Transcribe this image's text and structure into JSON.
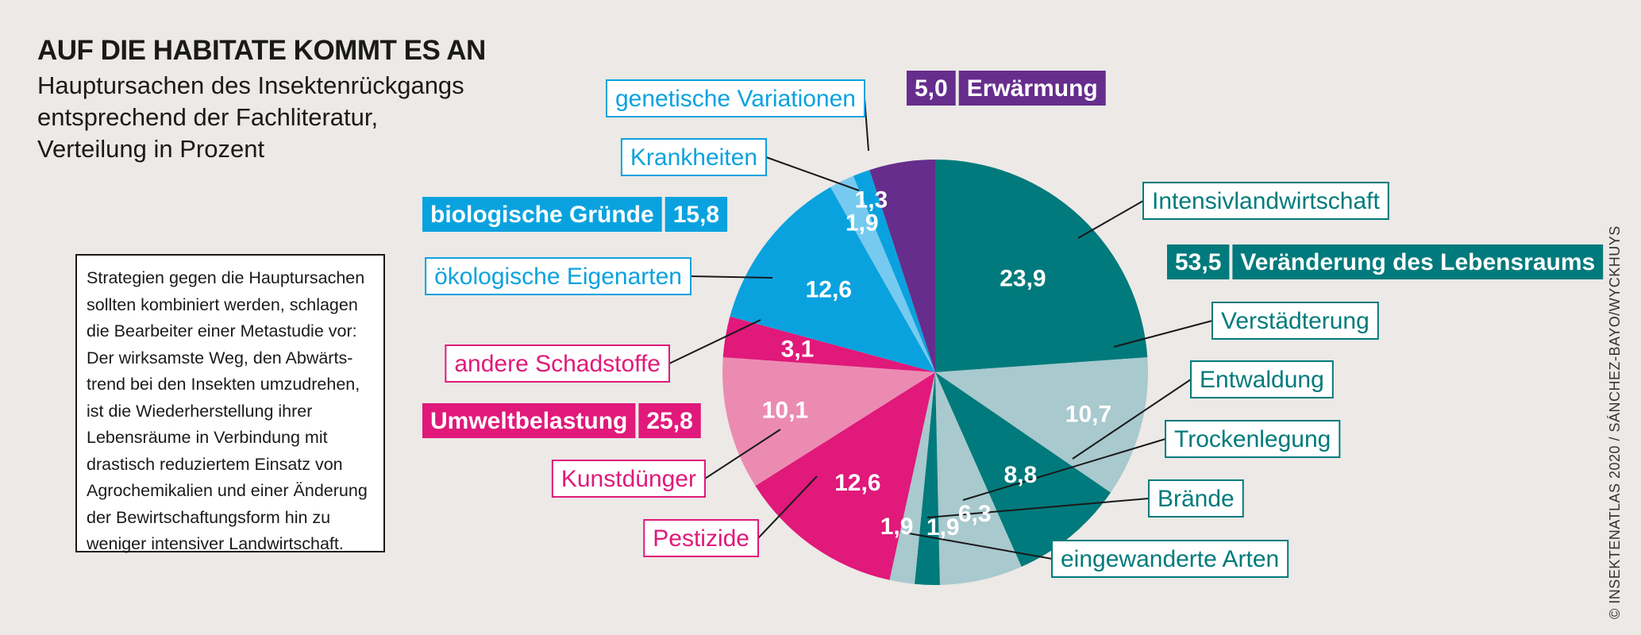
{
  "header": {
    "title": "AUF DIE HABITATE KOMMT ES AN",
    "subtitle_lines": [
      "Hauptursachen des Insektenrückgangs",
      "entsprechend der Fachliteratur,",
      "Verteilung in Prozent"
    ]
  },
  "note": {
    "lines": [
      "Strategien gegen die Hauptursachen",
      "sollten kombiniert werden, schlagen",
      "die Bearbeiter einer Metastudie vor:",
      "Der wirksamste Weg, den Abwärts-",
      "trend bei den Insekten umzudrehen,",
      "ist die Wiederherstellung ihrer",
      "Lebensräume in Verbindung mit",
      "drastisch reduziertem Einsatz von",
      "Agrochemikalien und einer Änderung",
      "der Bewirtschaftungsform hin zu",
      "weniger intensiver Landwirtschaft."
    ]
  },
  "credit": "© INSEKTENATLAS 2020 / SÁNCHEZ-BAYO/WYCKHUYS",
  "colors": {
    "teal": "#007A7C",
    "teal_light": "#A8C9CE",
    "magenta": "#E0197A",
    "pink": "#EC8BB2",
    "blue": "#0AA2DE",
    "blue_light": "#76CAF0",
    "purple": "#662D8C",
    "background": "#ECE9E6"
  },
  "chart_data": {
    "type": "pie",
    "title": "AUF DIE HABITATE KOMMT ES AN",
    "unit": "%",
    "slices": [
      {
        "label": "Intensivlandwirtschaft",
        "value": 23.9,
        "value_label": "23,9",
        "group": "Veränderung des Lebensraums",
        "color": "#007A7C"
      },
      {
        "label": "Verstädterung",
        "value": 10.7,
        "value_label": "10,7",
        "group": "Veränderung des Lebensraums",
        "color": "#A8C9CE"
      },
      {
        "label": "Entwaldung",
        "value": 8.8,
        "value_label": "8,8",
        "group": "Veränderung des Lebensraums",
        "color": "#007A7C"
      },
      {
        "label": "Trockenlegung",
        "value": 6.3,
        "value_label": "6,3",
        "group": "Veränderung des Lebensraums",
        "color": "#A8C9CE"
      },
      {
        "label": "Brände",
        "value": 1.9,
        "value_label": "1,9",
        "group": "Veränderung des Lebensraums",
        "color": "#007A7C"
      },
      {
        "label": "eingewanderte Arten",
        "value": 1.9,
        "value_label": "1,9",
        "group": "Veränderung des Lebensraums",
        "color": "#A8C9CE"
      },
      {
        "label": "Pestizide",
        "value": 12.6,
        "value_label": "12,6",
        "group": "Umweltbelastung",
        "color": "#E0197A"
      },
      {
        "label": "Kunstdünger",
        "value": 10.1,
        "value_label": "10,1",
        "group": "Umweltbelastung",
        "color": "#EC8BB2"
      },
      {
        "label": "andere Schadstoffe",
        "value": 3.1,
        "value_label": "3,1",
        "group": "Umweltbelastung",
        "color": "#E0197A"
      },
      {
        "label": "ökologische Eigenarten",
        "value": 12.6,
        "value_label": "12,6",
        "group": "biologische Gründe",
        "color": "#0AA2DE"
      },
      {
        "label": "Krankheiten",
        "value": 1.9,
        "value_label": "1,9",
        "group": "biologische Gründe",
        "color": "#76CAF0"
      },
      {
        "label": "genetische Variationen",
        "value": 1.3,
        "value_label": "1,3",
        "group": "biologische Gründe",
        "color": "#0AA2DE"
      },
      {
        "label": "Erwärmung",
        "value": 5.0,
        "value_label": "5,0",
        "group": "Erwärmung",
        "color": "#662D8C"
      }
    ],
    "groups": [
      {
        "name": "Veränderung des Lebensraums",
        "total": "53,5",
        "color": "#007A7C"
      },
      {
        "name": "Umweltbelastung",
        "total": "25,8",
        "color": "#E0197A"
      },
      {
        "name": "biologische Gründe",
        "total": "15,8",
        "color": "#0AA2DE"
      },
      {
        "name": "Erwärmung",
        "total": "5,0",
        "color": "#662D8C"
      }
    ]
  }
}
